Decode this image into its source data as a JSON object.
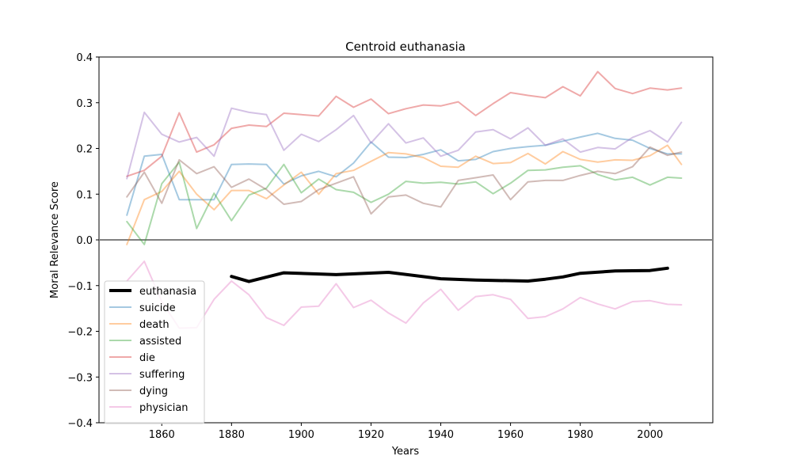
{
  "chart_data": {
    "type": "line",
    "title": "Centroid euthanasia",
    "xlabel": "Years",
    "ylabel": "Moral Relevance Score",
    "xlim": [
      1842,
      2018
    ],
    "ylim": [
      -0.4,
      0.4
    ],
    "xticks": [
      1860,
      1880,
      1900,
      1920,
      1940,
      1960,
      1980,
      2000
    ],
    "yticks": [
      -0.4,
      -0.3,
      -0.2,
      -0.1,
      0.0,
      0.1,
      0.2,
      0.3,
      0.4
    ],
    "ytick_labels": [
      "−0.4",
      "−0.3",
      "−0.2",
      "−0.1",
      "0.0",
      "0.1",
      "0.2",
      "0.3",
      "0.4"
    ],
    "zero_line": true,
    "grid": false,
    "legend_position": "lower-left",
    "series": [
      {
        "name": "euthanasia",
        "color": "#000000",
        "emphasis": true,
        "x": [
          1880,
          1885,
          1895,
          1910,
          1925,
          1940,
          1950,
          1965,
          1970,
          1975,
          1980,
          1990,
          2000,
          2005
        ],
        "y": [
          -0.08,
          -0.091,
          -0.072,
          -0.076,
          -0.071,
          -0.085,
          -0.088,
          -0.09,
          -0.086,
          -0.081,
          -0.073,
          -0.068,
          -0.067,
          -0.062
        ]
      },
      {
        "name": "suicide",
        "color": "#1f77b4",
        "x": [
          1850,
          1855,
          1860,
          1865,
          1870,
          1875,
          1880,
          1885,
          1890,
          1895,
          1900,
          1905,
          1910,
          1915,
          1920,
          1925,
          1930,
          1935,
          1940,
          1945,
          1950,
          1955,
          1960,
          1965,
          1970,
          1975,
          1980,
          1985,
          1990,
          1995,
          2000,
          2005,
          2009
        ],
        "y": [
          0.054,
          0.183,
          0.187,
          0.088,
          0.088,
          0.088,
          0.165,
          0.166,
          0.165,
          0.122,
          0.14,
          0.15,
          0.138,
          0.168,
          0.214,
          0.181,
          0.18,
          0.187,
          0.197,
          0.173,
          0.176,
          0.193,
          0.2,
          0.204,
          0.207,
          0.216,
          0.225,
          0.233,
          0.222,
          0.218,
          0.2,
          0.188,
          0.188
        ]
      },
      {
        "name": "death",
        "color": "#ff7f0e",
        "x": [
          1850,
          1855,
          1860,
          1865,
          1870,
          1875,
          1880,
          1885,
          1890,
          1895,
          1900,
          1905,
          1910,
          1915,
          1920,
          1925,
          1930,
          1935,
          1940,
          1945,
          1950,
          1955,
          1960,
          1965,
          1970,
          1975,
          1980,
          1985,
          1990,
          1995,
          2000,
          2005,
          2009
        ],
        "y": [
          -0.01,
          0.088,
          0.106,
          0.15,
          0.1,
          0.066,
          0.108,
          0.108,
          0.09,
          0.12,
          0.148,
          0.1,
          0.145,
          0.152,
          0.172,
          0.191,
          0.188,
          0.18,
          0.161,
          0.159,
          0.183,
          0.167,
          0.169,
          0.189,
          0.166,
          0.193,
          0.176,
          0.17,
          0.175,
          0.174,
          0.184,
          0.207,
          0.165
        ]
      },
      {
        "name": "assisted",
        "color": "#2ca02c",
        "x": [
          1850,
          1855,
          1860,
          1865,
          1870,
          1875,
          1880,
          1885,
          1890,
          1895,
          1900,
          1905,
          1910,
          1915,
          1920,
          1925,
          1930,
          1935,
          1940,
          1945,
          1950,
          1955,
          1960,
          1965,
          1970,
          1975,
          1980,
          1985,
          1990,
          1995,
          2000,
          2005,
          2009
        ],
        "y": [
          0.04,
          -0.01,
          0.123,
          0.17,
          0.025,
          0.102,
          0.042,
          0.098,
          0.113,
          0.165,
          0.103,
          0.133,
          0.11,
          0.104,
          0.082,
          0.1,
          0.128,
          0.124,
          0.126,
          0.122,
          0.127,
          0.101,
          0.124,
          0.152,
          0.153,
          0.159,
          0.162,
          0.143,
          0.131,
          0.137,
          0.12,
          0.137,
          0.135
        ]
      },
      {
        "name": "die",
        "color": "#d62728",
        "x": [
          1850,
          1855,
          1860,
          1865,
          1870,
          1875,
          1880,
          1885,
          1890,
          1895,
          1900,
          1905,
          1910,
          1915,
          1920,
          1925,
          1930,
          1935,
          1940,
          1945,
          1950,
          1955,
          1960,
          1965,
          1970,
          1975,
          1980,
          1985,
          1990,
          1995,
          2000,
          2005,
          2009
        ],
        "y": [
          0.139,
          0.152,
          0.183,
          0.278,
          0.192,
          0.208,
          0.244,
          0.251,
          0.248,
          0.277,
          0.274,
          0.271,
          0.314,
          0.29,
          0.308,
          0.276,
          0.287,
          0.295,
          0.293,
          0.302,
          0.272,
          0.298,
          0.322,
          0.316,
          0.311,
          0.335,
          0.315,
          0.368,
          0.331,
          0.32,
          0.332,
          0.328,
          0.332
        ]
      },
      {
        "name": "suffering",
        "color": "#9467bd",
        "x": [
          1850,
          1855,
          1860,
          1865,
          1870,
          1875,
          1880,
          1885,
          1890,
          1895,
          1900,
          1905,
          1910,
          1915,
          1920,
          1925,
          1930,
          1935,
          1940,
          1945,
          1950,
          1955,
          1960,
          1965,
          1970,
          1975,
          1980,
          1985,
          1990,
          1995,
          2000,
          2005,
          2009
        ],
        "y": [
          0.134,
          0.279,
          0.231,
          0.214,
          0.224,
          0.183,
          0.288,
          0.279,
          0.274,
          0.196,
          0.231,
          0.215,
          0.241,
          0.272,
          0.212,
          0.254,
          0.212,
          0.223,
          0.183,
          0.196,
          0.236,
          0.241,
          0.221,
          0.245,
          0.207,
          0.221,
          0.192,
          0.202,
          0.199,
          0.224,
          0.239,
          0.214,
          0.257
        ]
      },
      {
        "name": "dying",
        "color": "#8c564b",
        "x": [
          1850,
          1855,
          1860,
          1865,
          1870,
          1875,
          1880,
          1885,
          1890,
          1895,
          1900,
          1905,
          1910,
          1915,
          1920,
          1925,
          1930,
          1935,
          1940,
          1945,
          1950,
          1955,
          1960,
          1965,
          1970,
          1975,
          1980,
          1985,
          1990,
          1995,
          2000,
          2005,
          2009
        ],
        "y": [
          0.094,
          0.148,
          0.08,
          0.175,
          0.145,
          0.16,
          0.115,
          0.133,
          0.11,
          0.078,
          0.084,
          0.11,
          0.124,
          0.138,
          0.057,
          0.094,
          0.098,
          0.08,
          0.072,
          0.13,
          0.136,
          0.142,
          0.088,
          0.127,
          0.13,
          0.13,
          0.141,
          0.15,
          0.145,
          0.16,
          0.203,
          0.185,
          0.192
        ]
      },
      {
        "name": "physician",
        "color": "#e377c2",
        "x": [
          1850,
          1855,
          1860,
          1865,
          1870,
          1875,
          1880,
          1885,
          1890,
          1895,
          1900,
          1905,
          1910,
          1915,
          1920,
          1925,
          1930,
          1935,
          1940,
          1945,
          1950,
          1955,
          1960,
          1965,
          1970,
          1975,
          1980,
          1985,
          1990,
          1995,
          2000,
          2005,
          2009
        ],
        "y": [
          -0.09,
          -0.047,
          -0.135,
          -0.193,
          -0.192,
          -0.13,
          -0.09,
          -0.12,
          -0.17,
          -0.187,
          -0.147,
          -0.145,
          -0.096,
          -0.148,
          -0.132,
          -0.16,
          -0.182,
          -0.138,
          -0.108,
          -0.154,
          -0.124,
          -0.12,
          -0.13,
          -0.172,
          -0.168,
          -0.151,
          -0.126,
          -0.14,
          -0.151,
          -0.135,
          -0.133,
          -0.141,
          -0.142
        ]
      }
    ]
  }
}
